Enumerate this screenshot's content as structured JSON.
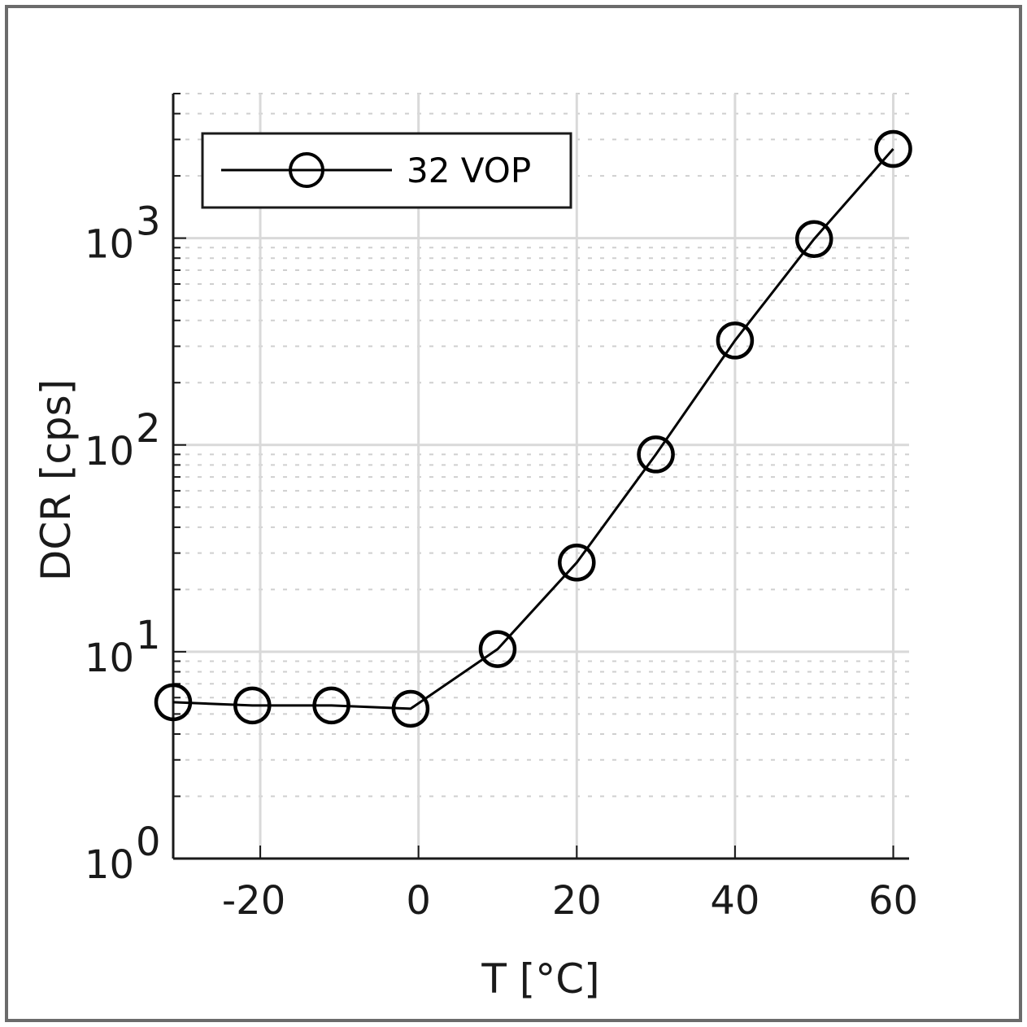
{
  "chart_data": {
    "type": "line",
    "title": "",
    "xlabel": "T [°C]",
    "ylabel": "DCR [cps]",
    "xlim": [
      -31,
      62
    ],
    "ylim": [
      1,
      5000
    ],
    "yscale": "log",
    "grid": true,
    "legend_position": "top-left",
    "x_ticks": [
      -20,
      0,
      20,
      40,
      60
    ],
    "x_tick_labels": [
      "-20",
      "0",
      "20",
      "40",
      "60"
    ],
    "y_ticks": [
      1,
      10,
      100,
      1000
    ],
    "y_tick_exponents": [
      "0",
      "1",
      "2",
      "3"
    ],
    "y_tick_base": "10",
    "series": [
      {
        "name": "32 VOP",
        "color": "#000000",
        "marker": "circle",
        "x": [
          -31,
          -21,
          -11,
          -1,
          10,
          20,
          30,
          40,
          50,
          60
        ],
        "y": [
          5.7,
          5.5,
          5.5,
          5.3,
          10.3,
          27,
          90,
          320,
          990,
          2700
        ]
      }
    ]
  }
}
